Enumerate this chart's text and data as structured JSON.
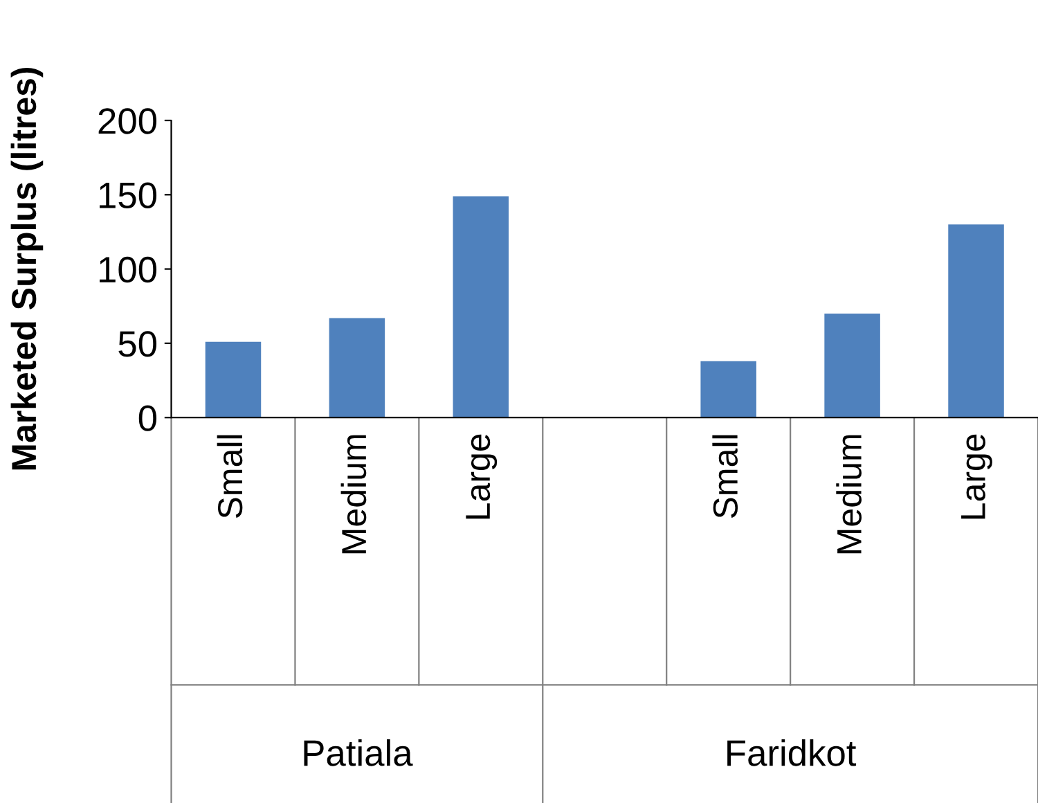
{
  "chart_data": {
    "type": "bar",
    "ylabel": "Marketed Surplus (litres)",
    "categories": [
      "Small",
      "Medium",
      "Large",
      null,
      "Small",
      "Medium",
      "Large"
    ],
    "values": [
      51,
      67,
      149,
      null,
      38,
      70,
      130
    ],
    "color": "#4f81bd",
    "ylim": [
      0,
      200
    ],
    "yticks": [
      0,
      50,
      100,
      150,
      200
    ],
    "grid": false,
    "legend": false,
    "annotations": [
      "Patiala",
      "Faridkot"
    ]
  }
}
